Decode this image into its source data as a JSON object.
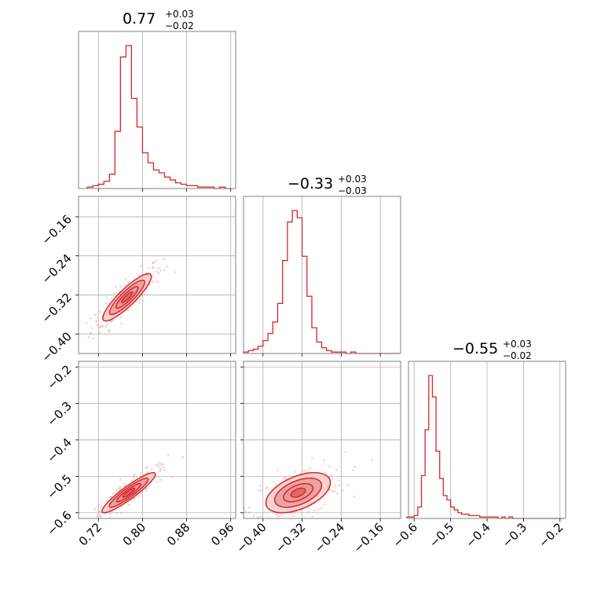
{
  "colors": {
    "accent": "#d62728",
    "fill_light": "#f4c7c7",
    "fill_mid": "#e89494",
    "fill_dark": "#d95b5b",
    "scatter": "#f3b6b6",
    "grid": "#b0b0b0",
    "frame": "#808080"
  },
  "chart_data": {
    "type": "corner",
    "grid": true,
    "parameters": [
      {
        "id": "p0",
        "median": 0.77,
        "title_value": "0.77",
        "title_upper": "+0.03",
        "title_lower": "−0.02",
        "range": [
          0.684,
          0.969
        ],
        "ticks": [
          0.72,
          0.8,
          0.88,
          0.96
        ],
        "tick_labels": [
          "0.72",
          "0.80",
          "0.88",
          "0.96"
        ]
      },
      {
        "id": "p1",
        "median": -0.33,
        "title_value": "−0.33",
        "title_upper": "+0.03",
        "title_lower": "−0.03",
        "range": [
          -0.4399,
          -0.1183
        ],
        "ticks": [
          -0.4,
          -0.32,
          -0.24,
          -0.16
        ],
        "tick_labels": [
          "−0.40",
          "−0.32",
          "−0.24",
          "−0.16"
        ]
      },
      {
        "id": "p2",
        "median": -0.55,
        "title_value": "−0.55",
        "title_upper": "+0.03",
        "title_lower": "−0.02",
        "range": [
          -0.6156,
          -0.1846
        ],
        "ticks": [
          -0.6,
          -0.5,
          -0.4,
          -0.3,
          -0.2
        ],
        "tick_labels": [
          "−0.6",
          "−0.5",
          "−0.4",
          "−0.3",
          "−0.2"
        ]
      }
    ],
    "histograms": [
      {
        "param": 0,
        "bin_edges": [
          0.7,
          0.71,
          0.72,
          0.73,
          0.74,
          0.75,
          0.76,
          0.77,
          0.78,
          0.79,
          0.8,
          0.81,
          0.82,
          0.83,
          0.84,
          0.85,
          0.86,
          0.87,
          0.88,
          0.89,
          0.9,
          0.91,
          0.92,
          0.93,
          0.94,
          0.95,
          0.96
        ],
        "counts": [
          1,
          2,
          3,
          5,
          10,
          40,
          92,
          100,
          63,
          43,
          25,
          18,
          13,
          11,
          8,
          6,
          4,
          3,
          2,
          2,
          1,
          1,
          1,
          0,
          1,
          0
        ]
      },
      {
        "param": 1,
        "bin_edges": [
          -0.44,
          -0.43,
          -0.42,
          -0.41,
          -0.4,
          -0.39,
          -0.38,
          -0.37,
          -0.36,
          -0.35,
          -0.34,
          -0.33,
          -0.32,
          -0.31,
          -0.3,
          -0.29,
          -0.28,
          -0.27,
          -0.26,
          -0.25,
          -0.24,
          -0.23,
          -0.22,
          -0.21,
          -0.2,
          -0.19,
          -0.18,
          -0.17,
          -0.16,
          -0.15,
          -0.14,
          -0.13,
          -0.12
        ],
        "counts": [
          1,
          2,
          3,
          5,
          9,
          14,
          22,
          35,
          65,
          92,
          100,
          95,
          68,
          40,
          18,
          8,
          4,
          2,
          1,
          1,
          1,
          0,
          1,
          0,
          0,
          0,
          0,
          0,
          0,
          0,
          0,
          0
        ]
      },
      {
        "param": 2,
        "bin_edges": [
          -0.62,
          -0.61,
          -0.6,
          -0.59,
          -0.58,
          -0.57,
          -0.56,
          -0.55,
          -0.54,
          -0.53,
          -0.52,
          -0.51,
          -0.5,
          -0.49,
          -0.48,
          -0.47,
          -0.46,
          -0.45,
          -0.44,
          -0.43,
          -0.42,
          -0.41,
          -0.4,
          -0.39,
          -0.38,
          -0.37,
          -0.36,
          -0.35,
          -0.34,
          -0.33,
          -0.32,
          -0.31,
          -0.3,
          -0.29,
          -0.28,
          -0.27,
          -0.26,
          -0.25,
          -0.24,
          -0.23,
          -0.22,
          -0.21,
          -0.2,
          -0.19
        ],
        "counts": [
          1,
          1,
          2,
          8,
          30,
          62,
          100,
          85,
          47,
          28,
          16,
          13,
          8,
          6,
          4,
          3,
          3,
          2,
          2,
          2,
          1,
          1,
          1,
          1,
          1,
          0,
          1,
          0,
          1,
          0,
          0,
          0,
          0,
          0,
          0,
          0,
          0,
          0,
          0,
          0,
          0,
          0,
          0
        ]
      }
    ],
    "pairs": [
      {
        "x_param": 0,
        "y_param": 1,
        "mean": [
          0.772,
          -0.325
        ],
        "std": [
          0.02,
          0.022
        ],
        "corr": 0.88,
        "scatter_n": 220
      },
      {
        "x_param": 0,
        "y_param": 2,
        "mean": [
          0.775,
          -0.545
        ],
        "std": [
          0.022,
          0.025
        ],
        "corr": 0.92,
        "scatter_n": 220
      },
      {
        "x_param": 1,
        "y_param": 2,
        "mean": [
          -0.328,
          -0.545
        ],
        "std": [
          0.03,
          0.025
        ],
        "corr": 0.5,
        "scatter_n": 220
      }
    ]
  }
}
